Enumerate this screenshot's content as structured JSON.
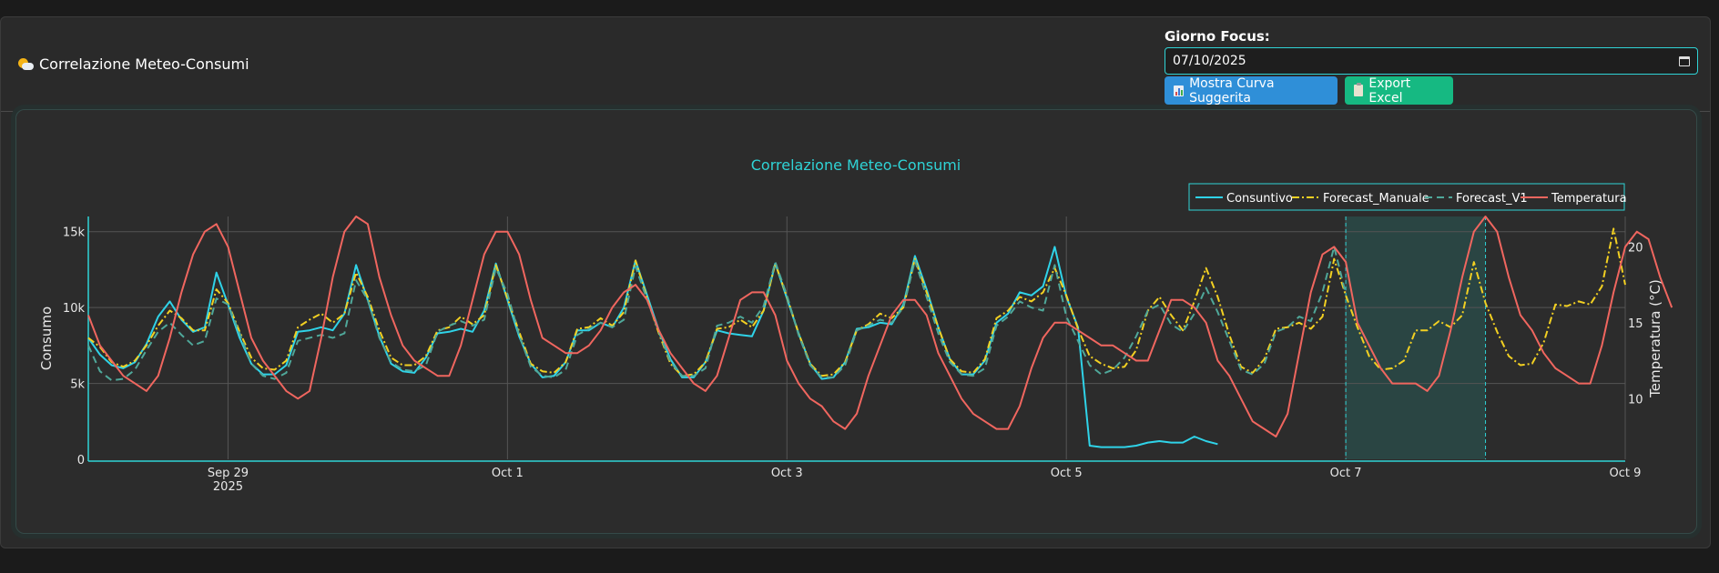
{
  "header": {
    "title": "Correlazione Meteo-Consumi",
    "focus_label": "Giorno Focus:",
    "focus_date": "07/10/2025",
    "btn_curve": "Mostra Curva Suggerita",
    "btn_export": "Export Excel"
  },
  "colors": {
    "consuntivo": "#2fd3e8",
    "forecast_manuale": "#f2d022",
    "forecast_v1": "#4fa89a",
    "temperatura": "#f0665f",
    "accent": "#2fd3d6",
    "highlight": "#2a4a48"
  },
  "chart_data": {
    "type": "line",
    "title": "Correlazione Meteo-Consumi",
    "ylabel": "Consumo",
    "y2label": "Temperatura (°C)",
    "ylim": [
      0,
      16000
    ],
    "y2lim": [
      6,
      22
    ],
    "x_range": [
      "2025-09-28",
      "2025-10-09"
    ],
    "x_ticks": [
      {
        "date": "2025-09-29",
        "label": "Sep 29",
        "sub": "2025"
      },
      {
        "date": "2025-10-01",
        "label": "Oct 1",
        "sub": ""
      },
      {
        "date": "2025-10-03",
        "label": "Oct 3",
        "sub": ""
      },
      {
        "date": "2025-10-05",
        "label": "Oct 5",
        "sub": ""
      },
      {
        "date": "2025-10-07",
        "label": "Oct 7",
        "sub": ""
      },
      {
        "date": "2025-10-09",
        "label": "Oct 9",
        "sub": ""
      }
    ],
    "y_ticks": [
      {
        "v": 0,
        "label": "0"
      },
      {
        "v": 5000,
        "label": "5k"
      },
      {
        "v": 10000,
        "label": "10k"
      },
      {
        "v": 15000,
        "label": "15k"
      }
    ],
    "y2_ticks": [
      {
        "v": 10,
        "label": "10"
      },
      {
        "v": 15,
        "label": "15"
      },
      {
        "v": 20,
        "label": "20"
      }
    ],
    "highlight_range": [
      "2025-10-07",
      "2025-10-08"
    ],
    "legend": [
      "Consuntivo",
      "Forecast_Manuale",
      "Forecast_V1",
      "Temperatura"
    ],
    "legend_position": "top-right",
    "grid": true,
    "start": "2025-09-28T00:00",
    "series": [
      {
        "name": "Consuntivo",
        "axis": "y",
        "values": [
          8000,
          6900,
          6200,
          6000,
          6400,
          7600,
          9400,
          10400,
          9200,
          8400,
          8700,
          12300,
          10200,
          8000,
          6300,
          5600,
          5600,
          6200,
          8400,
          8500,
          8700,
          8500,
          9600,
          12800,
          10500,
          8100,
          6300,
          5800,
          5700,
          6700,
          8300,
          8400,
          8600,
          8400,
          9800,
          12900,
          10500,
          8100,
          6300,
          5400,
          5500,
          6400,
          8500,
          8500,
          9000,
          8700,
          10000,
          13100,
          10800,
          8500,
          6600,
          5400,
          5400,
          6400,
          8500,
          8300,
          8200,
          8100,
          9800,
          12900,
          10600,
          8300,
          6300,
          5300,
          5400,
          6400,
          8600,
          8700,
          9000,
          8900,
          10200,
          13400,
          11200,
          8700,
          6600,
          5600,
          5600,
          6500,
          9000,
          9600,
          11000,
          10800,
          11400,
          14000,
          10700,
          8700,
          900,
          800,
          800,
          800,
          900,
          1100,
          1200,
          1100,
          1100,
          1500,
          1200,
          1000,
          null,
          null,
          null,
          null,
          null,
          null,
          null,
          null,
          null,
          null,
          null,
          null,
          null,
          null,
          null,
          null,
          null,
          null,
          null,
          null,
          null,
          null,
          null,
          null,
          null,
          null,
          null,
          null,
          null,
          null,
          null,
          null,
          null,
          null,
          null
        ]
      },
      {
        "name": "Forecast_Manuale",
        "axis": "y",
        "values": [
          8000,
          7400,
          6400,
          6100,
          6500,
          7500,
          8800,
          9800,
          9300,
          8500,
          8500,
          11200,
          10300,
          8400,
          6700,
          6000,
          5900,
          6500,
          8700,
          9200,
          9600,
          9000,
          9600,
          12300,
          10700,
          8500,
          6700,
          6200,
          6200,
          6800,
          8500,
          8700,
          9400,
          8900,
          9500,
          12800,
          10600,
          8400,
          6300,
          5800,
          5700,
          6400,
          8600,
          8700,
          9300,
          8800,
          9700,
          13100,
          10600,
          8300,
          6300,
          5500,
          5600,
          6400,
          8600,
          8700,
          9200,
          8700,
          9800,
          12900,
          10700,
          8300,
          6300,
          5500,
          5600,
          6400,
          8500,
          8900,
          9600,
          9300,
          10000,
          13200,
          11000,
          8700,
          6600,
          5800,
          5700,
          6600,
          9300,
          9800,
          10700,
          10400,
          11000,
          12600,
          10800,
          8600,
          6800,
          6300,
          6000,
          6100,
          7200,
          9800,
          10700,
          9500,
          8500,
          10400,
          12600,
          10700,
          8200,
          6100,
          5700,
          6600,
          8600,
          8700,
          9000,
          8600,
          9400,
          13200,
          10800,
          8700,
          6800,
          5900,
          6000,
          6500,
          8500,
          8500,
          9100,
          8700,
          9500,
          13000,
          10300,
          8400,
          6800,
          6200,
          6300,
          7700,
          10200,
          10100,
          10400,
          10200,
          11400,
          15200,
          11500
        ]
      },
      {
        "name": "Forecast_V1",
        "axis": "y",
        "values": [
          7500,
          5800,
          5200,
          5300,
          5900,
          7200,
          8400,
          9000,
          8200,
          7500,
          7800,
          10600,
          10200,
          8300,
          6300,
          5500,
          5300,
          5700,
          7800,
          8000,
          8200,
          8000,
          8300,
          11800,
          10500,
          8000,
          6400,
          5900,
          5800,
          6200,
          8400,
          8800,
          9100,
          8800,
          9200,
          12600,
          10900,
          8200,
          6100,
          5500,
          5400,
          5900,
          8200,
          8600,
          9000,
          8700,
          9200,
          12700,
          10500,
          8400,
          6400,
          5500,
          5500,
          6000,
          8800,
          9000,
          9400,
          9000,
          10100,
          13000,
          10800,
          8200,
          6200,
          5400,
          5400,
          6200,
          8500,
          8800,
          9200,
          9000,
          10000,
          13100,
          10700,
          8300,
          6400,
          5600,
          5500,
          6000,
          8800,
          9400,
          10400,
          10000,
          9800,
          12800,
          9400,
          7800,
          6200,
          5600,
          5900,
          6700,
          8100,
          9800,
          10200,
          8900,
          8400,
          9600,
          11300,
          9700,
          7800,
          5900,
          5600,
          6300,
          8400,
          8700,
          9400,
          9100,
          11000,
          14000,
          10900
        ]
      },
      {
        "name": "Temperatura",
        "axis": "y2",
        "values": [
          15.5,
          13.5,
          12.5,
          11.5,
          11,
          10.5,
          11.5,
          14,
          17,
          19.5,
          21,
          21.5,
          20,
          17,
          14,
          12.5,
          11.5,
          10.5,
          10,
          10.5,
          14,
          18,
          21,
          22,
          21.5,
          18,
          15.5,
          13.5,
          12.5,
          12,
          11.5,
          11.5,
          13.5,
          16.5,
          19.5,
          21,
          21,
          19.5,
          16.5,
          14,
          13.5,
          13,
          13,
          13.5,
          14.5,
          16,
          17,
          17.5,
          16.5,
          14.5,
          13,
          12,
          11,
          10.5,
          11.5,
          14,
          16.5,
          17,
          17,
          15.5,
          12.5,
          11,
          10,
          9.5,
          8.5,
          8,
          9,
          11.5,
          13.5,
          15.5,
          16.5,
          16.5,
          15.5,
          13,
          11.5,
          10,
          9,
          8.5,
          8,
          8,
          9.5,
          12,
          14,
          15,
          15,
          14.5,
          14,
          13.5,
          13.5,
          13,
          12.5,
          12.5,
          14.5,
          16.5,
          16.5,
          16,
          15,
          12.5,
          11.5,
          10,
          8.5,
          8,
          7.5,
          9,
          13,
          17,
          19.5,
          20,
          19,
          15,
          13.5,
          12,
          11,
          11,
          11,
          10.5,
          11.5,
          14.5,
          18,
          21,
          22,
          21,
          18,
          15.5,
          14.5,
          13,
          12,
          11.5,
          11,
          11,
          13.5,
          17,
          20,
          21,
          20.5,
          18,
          16
        ]
      }
    ]
  }
}
